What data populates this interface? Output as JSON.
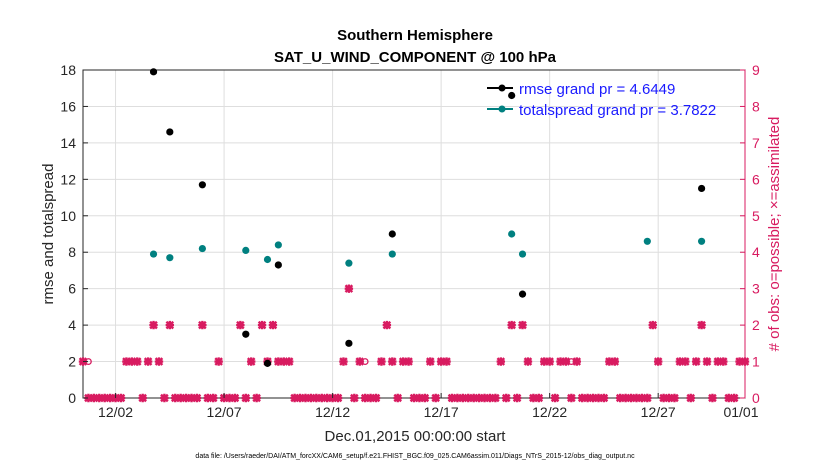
{
  "chart_data": {
    "type": "scatter",
    "title": "Southern Hemisphere",
    "subtitle": "SAT_U_WIND_COMPONENT @ 100 hPa",
    "xlabel": "Dec.01,2015 00:00:00 start",
    "ylabel": "rmse and totalspread",
    "y2label": "# of obs: o=possible; ×=assimilated",
    "footer": "data file: /Users/raeder/DAI/ATM_forcXX/CAM6_setup/f.e21.FHIST_BGC.f09_025.CAM6assim.011/Diags_NTrS_2015-12/obs_diag_output.nc",
    "xlim": [
      0.5,
      31.0
    ],
    "ylim": [
      0,
      18
    ],
    "y2lim": [
      0,
      9
    ],
    "xticks": [
      {
        "value": 2,
        "label": "12/02"
      },
      {
        "value": 7,
        "label": "12/07"
      },
      {
        "value": 12,
        "label": "12/12"
      },
      {
        "value": 17,
        "label": "12/17"
      },
      {
        "value": 22,
        "label": "12/22"
      },
      {
        "value": 27,
        "label": "12/27"
      },
      {
        "value": 32,
        "label": "01/01"
      }
    ],
    "yticks": [
      0,
      2,
      4,
      6,
      8,
      10,
      12,
      14,
      16,
      18
    ],
    "y2ticks": [
      0,
      1,
      2,
      3,
      4,
      5,
      6,
      7,
      8,
      9
    ],
    "grid": true,
    "legend_position": "top-right",
    "colors": {
      "rmse": "#000000",
      "spread": "#008080",
      "obs": "#d81b60",
      "legend_text": "#1a1aff",
      "right_axis": "#d81b60"
    },
    "series": [
      {
        "name": "rmse grand pr = 4.6449",
        "marker": "black-dot",
        "x": [
          3.75,
          4.5,
          6.0,
          8.0,
          9.0,
          9.5,
          12.75,
          14.75,
          20.25,
          20.75,
          29.0
        ],
        "y": [
          17.9,
          14.6,
          11.7,
          3.5,
          1.9,
          7.3,
          3.0,
          9.0,
          16.6,
          5.7,
          11.5
        ]
      },
      {
        "name": "totalspread grand pr = 3.7822",
        "marker": "teal-dot",
        "x": [
          3.75,
          4.5,
          6.0,
          8.0,
          9.0,
          9.5,
          12.75,
          14.75,
          20.25,
          20.75,
          26.5,
          29.0
        ],
        "y": [
          7.9,
          7.7,
          8.2,
          8.1,
          7.6,
          8.4,
          7.4,
          7.9,
          9.0,
          7.9,
          8.6,
          8.6
        ]
      }
    ],
    "obs_counts": {
      "x": [
        0.5,
        0.75,
        1.0,
        1.25,
        1.5,
        1.75,
        2.0,
        2.25,
        2.5,
        2.75,
        3.0,
        3.25,
        3.5,
        3.75,
        4.0,
        4.25,
        4.5,
        4.75,
        5.0,
        5.25,
        5.5,
        5.75,
        6.0,
        6.25,
        6.5,
        6.75,
        7.0,
        7.25,
        7.5,
        7.75,
        8.0,
        8.25,
        8.5,
        8.75,
        9.0,
        9.25,
        9.5,
        9.75,
        10.0,
        10.25,
        10.5,
        10.75,
        11.0,
        11.25,
        11.5,
        11.75,
        12.0,
        12.25,
        12.5,
        12.75,
        13.0,
        13.25,
        13.5,
        13.75,
        14.0,
        14.25,
        14.5,
        14.75,
        15.0,
        15.25,
        15.5,
        15.75,
        16.0,
        16.25,
        16.5,
        16.75,
        17.0,
        17.25,
        17.5,
        17.75,
        18.0,
        18.25,
        18.5,
        18.75,
        19.0,
        19.25,
        19.5,
        19.75,
        20.0,
        20.25,
        20.5,
        20.75,
        21.0,
        21.25,
        21.5,
        21.75,
        22.0,
        22.25,
        22.5,
        22.75,
        23.0,
        23.25,
        23.5,
        23.75,
        24.0,
        24.25,
        24.5,
        24.75,
        25.0,
        25.25,
        25.5,
        25.75,
        26.0,
        26.25,
        26.5,
        26.75,
        27.0,
        27.25,
        27.5,
        27.75,
        28.0,
        28.25,
        28.5,
        28.75,
        29.0,
        29.25,
        29.5,
        29.75,
        30.0,
        30.25,
        30.5,
        30.75,
        31.0
      ],
      "assimilated": [
        1,
        0,
        0,
        0,
        0,
        0,
        0,
        0,
        1,
        1,
        1,
        0,
        1,
        2,
        1,
        0,
        2,
        0,
        0,
        0,
        0,
        0,
        2,
        0,
        0,
        1,
        0,
        0,
        0,
        2,
        0,
        1,
        0,
        2,
        1,
        2,
        1,
        1,
        1,
        0,
        0,
        0,
        0,
        0,
        0,
        0,
        0,
        0,
        1,
        3,
        0,
        1,
        0,
        0,
        0,
        1,
        2,
        1,
        0,
        1,
        1,
        0,
        0,
        0,
        1,
        0,
        1,
        1,
        0,
        0,
        0,
        0,
        0,
        0,
        0,
        0,
        0,
        1,
        0,
        2,
        0,
        2,
        1,
        0,
        0,
        1,
        1,
        0,
        1,
        1,
        0,
        1,
        0,
        0,
        0,
        0,
        0,
        1,
        1,
        0,
        0,
        0,
        0,
        0,
        0,
        2,
        1,
        0,
        0,
        0,
        1,
        1,
        0,
        1,
        2,
        1,
        0,
        1,
        1,
        0,
        0,
        1,
        1,
        0,
        0,
        0,
        0
      ],
      "possible": [
        1,
        1,
        0,
        0,
        0,
        0,
        0,
        0,
        1,
        1,
        1,
        0,
        1,
        2,
        1,
        0,
        2,
        0,
        0,
        0,
        0,
        0,
        2,
        0,
        0,
        1,
        0,
        0,
        0,
        2,
        0,
        1,
        0,
        2,
        1,
        2,
        1,
        1,
        1,
        0,
        0,
        0,
        0,
        0,
        0,
        0,
        0,
        0,
        1,
        3,
        0,
        1,
        1,
        0,
        0,
        1,
        2,
        1,
        0,
        1,
        1,
        0,
        0,
        0,
        1,
        0,
        1,
        1,
        0,
        0,
        0,
        0,
        0,
        0,
        0,
        0,
        0,
        1,
        0,
        2,
        0,
        2,
        1,
        0,
        0,
        1,
        1,
        0,
        1,
        1,
        1,
        1,
        0,
        0,
        0,
        0,
        0,
        1,
        1,
        0,
        0,
        0,
        0,
        0,
        0,
        2,
        1,
        0,
        0,
        0,
        1,
        1,
        0,
        1,
        2,
        1,
        0,
        1,
        1,
        0,
        0,
        1,
        1,
        0,
        0,
        0,
        0
      ]
    }
  }
}
